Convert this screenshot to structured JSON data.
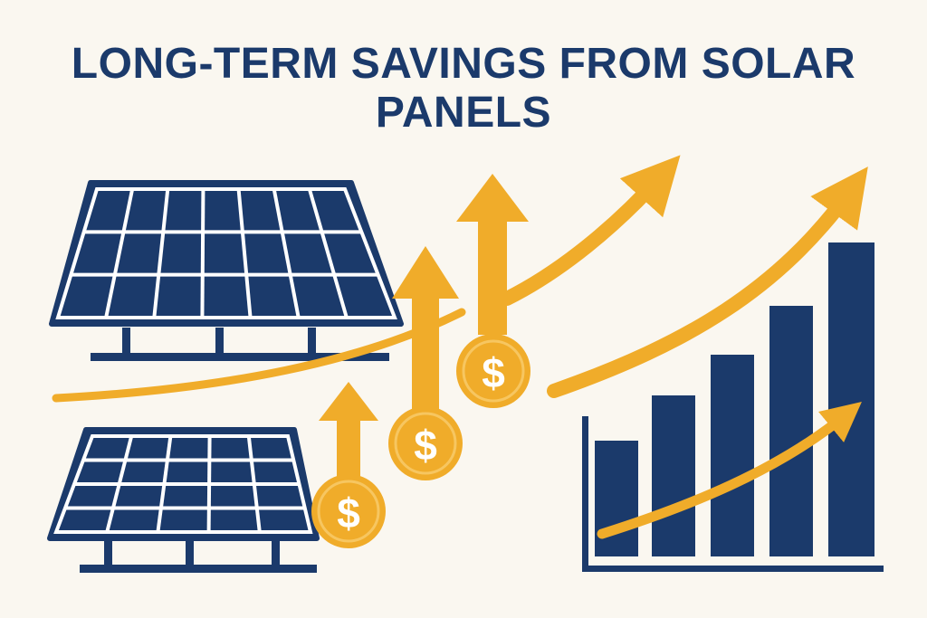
{
  "title": "LONG-TERM SAVINGS FROM SOLAR PANELS",
  "coins": [
    "$",
    "$",
    "$"
  ]
}
